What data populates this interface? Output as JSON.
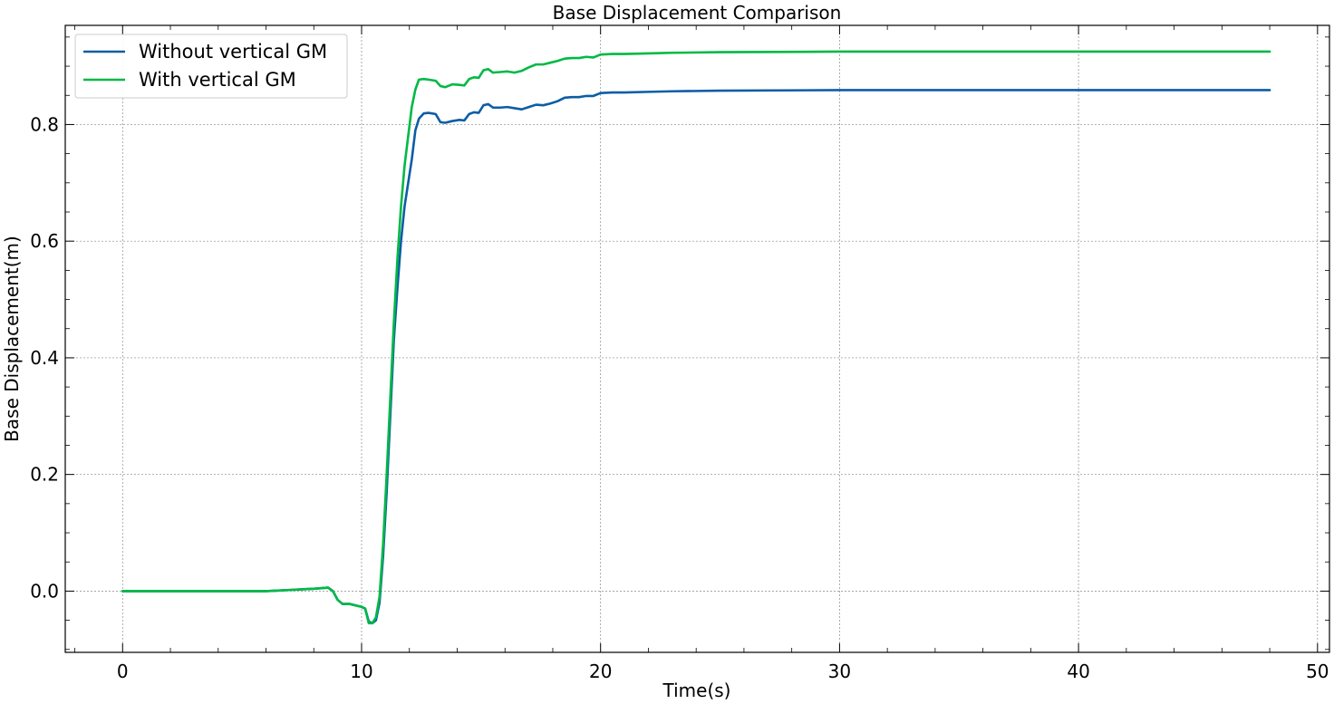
{
  "chart_data": {
    "type": "line",
    "title": "Base Displacement Comparison",
    "xlabel": "Time(s)",
    "ylabel": "Base Displacement(m)",
    "xlim": [
      -2.4,
      50.5
    ],
    "ylim": [
      -0.105,
      0.97
    ],
    "xticks": [
      0,
      10,
      20,
      30,
      40,
      50
    ],
    "xtick_labels": [
      "0",
      "10",
      "20",
      "30",
      "40",
      "50"
    ],
    "yticks": [
      0.0,
      0.2,
      0.4,
      0.6,
      0.8
    ],
    "ytick_labels": [
      "0.0",
      "0.2",
      "0.4",
      "0.6",
      "0.8"
    ],
    "grid": true,
    "legend_position": "top-left",
    "series": [
      {
        "name": "Without vertical GM",
        "color": "#0c5da5",
        "points": [
          [
            0,
            0.0
          ],
          [
            2,
            0.0
          ],
          [
            4,
            0.0
          ],
          [
            6,
            0.0
          ],
          [
            6.5,
            0.001
          ],
          [
            7,
            0.002
          ],
          [
            7.5,
            0.003
          ],
          [
            8,
            0.004
          ],
          [
            8.3,
            0.005
          ],
          [
            8.6,
            0.006
          ],
          [
            8.8,
            0.0
          ],
          [
            9.0,
            -0.015
          ],
          [
            9.2,
            -0.022
          ],
          [
            9.5,
            -0.022
          ],
          [
            9.8,
            -0.025
          ],
          [
            10.0,
            -0.027
          ],
          [
            10.15,
            -0.03
          ],
          [
            10.3,
            -0.052
          ],
          [
            10.45,
            -0.055
          ],
          [
            10.6,
            -0.05
          ],
          [
            10.75,
            -0.02
          ],
          [
            10.9,
            0.06
          ],
          [
            11.05,
            0.17
          ],
          [
            11.2,
            0.3
          ],
          [
            11.35,
            0.43
          ],
          [
            11.5,
            0.52
          ],
          [
            11.65,
            0.6
          ],
          [
            11.8,
            0.66
          ],
          [
            11.95,
            0.7
          ],
          [
            12.1,
            0.74
          ],
          [
            12.25,
            0.79
          ],
          [
            12.4,
            0.81
          ],
          [
            12.6,
            0.819
          ],
          [
            12.8,
            0.82
          ],
          [
            13.1,
            0.818
          ],
          [
            13.3,
            0.804
          ],
          [
            13.5,
            0.803
          ],
          [
            13.8,
            0.806
          ],
          [
            14.1,
            0.808
          ],
          [
            14.3,
            0.807
          ],
          [
            14.5,
            0.818
          ],
          [
            14.7,
            0.821
          ],
          [
            14.9,
            0.82
          ],
          [
            15.1,
            0.833
          ],
          [
            15.3,
            0.835
          ],
          [
            15.5,
            0.829
          ],
          [
            15.8,
            0.829
          ],
          [
            16.1,
            0.83
          ],
          [
            16.4,
            0.828
          ],
          [
            16.7,
            0.826
          ],
          [
            17.0,
            0.83
          ],
          [
            17.3,
            0.834
          ],
          [
            17.6,
            0.833
          ],
          [
            17.9,
            0.836
          ],
          [
            18.2,
            0.84
          ],
          [
            18.5,
            0.846
          ],
          [
            18.8,
            0.847
          ],
          [
            19.1,
            0.847
          ],
          [
            19.4,
            0.849
          ],
          [
            19.7,
            0.849
          ],
          [
            20.0,
            0.854
          ],
          [
            20.5,
            0.855
          ],
          [
            21.0,
            0.855
          ],
          [
            22.0,
            0.856
          ],
          [
            23.0,
            0.857
          ],
          [
            25.0,
            0.858
          ],
          [
            30.0,
            0.859
          ],
          [
            40.0,
            0.859
          ],
          [
            48.0,
            0.859
          ]
        ]
      },
      {
        "name": "With vertical GM",
        "color": "#00b945",
        "points": [
          [
            0,
            0.0
          ],
          [
            2,
            0.0
          ],
          [
            4,
            0.0
          ],
          [
            6,
            0.0
          ],
          [
            6.5,
            0.001
          ],
          [
            7,
            0.002
          ],
          [
            7.5,
            0.003
          ],
          [
            8,
            0.004
          ],
          [
            8.3,
            0.005
          ],
          [
            8.6,
            0.006
          ],
          [
            8.8,
            0.0
          ],
          [
            9.0,
            -0.015
          ],
          [
            9.2,
            -0.022
          ],
          [
            9.5,
            -0.022
          ],
          [
            9.8,
            -0.025
          ],
          [
            10.0,
            -0.027
          ],
          [
            10.15,
            -0.03
          ],
          [
            10.3,
            -0.055
          ],
          [
            10.45,
            -0.055
          ],
          [
            10.6,
            -0.045
          ],
          [
            10.75,
            -0.01
          ],
          [
            10.9,
            0.08
          ],
          [
            11.05,
            0.2
          ],
          [
            11.2,
            0.33
          ],
          [
            11.35,
            0.46
          ],
          [
            11.5,
            0.57
          ],
          [
            11.65,
            0.66
          ],
          [
            11.8,
            0.73
          ],
          [
            11.95,
            0.78
          ],
          [
            12.1,
            0.83
          ],
          [
            12.25,
            0.86
          ],
          [
            12.4,
            0.877
          ],
          [
            12.6,
            0.878
          ],
          [
            12.8,
            0.877
          ],
          [
            13.1,
            0.875
          ],
          [
            13.3,
            0.866
          ],
          [
            13.5,
            0.864
          ],
          [
            13.8,
            0.869
          ],
          [
            14.1,
            0.868
          ],
          [
            14.3,
            0.867
          ],
          [
            14.5,
            0.878
          ],
          [
            14.7,
            0.881
          ],
          [
            14.9,
            0.88
          ],
          [
            15.1,
            0.893
          ],
          [
            15.3,
            0.895
          ],
          [
            15.5,
            0.889
          ],
          [
            15.8,
            0.89
          ],
          [
            16.1,
            0.891
          ],
          [
            16.4,
            0.889
          ],
          [
            16.7,
            0.892
          ],
          [
            17.0,
            0.898
          ],
          [
            17.3,
            0.903
          ],
          [
            17.6,
            0.903
          ],
          [
            17.9,
            0.906
          ],
          [
            18.2,
            0.909
          ],
          [
            18.5,
            0.913
          ],
          [
            18.8,
            0.914
          ],
          [
            19.1,
            0.914
          ],
          [
            19.4,
            0.916
          ],
          [
            19.7,
            0.915
          ],
          [
            20.0,
            0.92
          ],
          [
            20.5,
            0.921
          ],
          [
            21.0,
            0.921
          ],
          [
            22.0,
            0.922
          ],
          [
            23.0,
            0.923
          ],
          [
            25.0,
            0.924
          ],
          [
            30.0,
            0.925
          ],
          [
            40.0,
            0.925
          ],
          [
            48.0,
            0.925
          ]
        ]
      }
    ]
  }
}
